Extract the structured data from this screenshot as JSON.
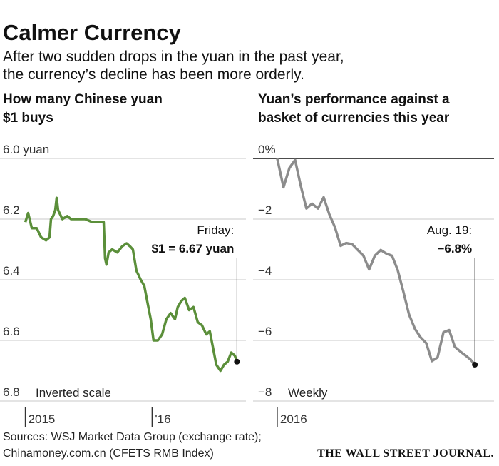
{
  "title": "Calmer Currency",
  "subtitle": [
    "After two sudden drops in the yuan in the past year,",
    "the currency’s decline has been more orderly."
  ],
  "chart_data": [
    {
      "type": "line",
      "title": [
        "How many Chinese yuan",
        "$1 buys"
      ],
      "color": "#5b8f3a",
      "inverted_scale": true,
      "grid": true,
      "x": [
        2015.0,
        2015.022,
        2015.051,
        2015.09,
        2015.124,
        2015.163,
        2015.191,
        2015.202,
        2015.219,
        2015.236,
        2015.247,
        2015.258,
        2015.292,
        2015.331,
        2015.36,
        2015.416,
        2015.472,
        2015.528,
        2015.584,
        2015.618,
        2015.629,
        2015.64,
        2015.657,
        2015.685,
        2015.725,
        2015.764,
        2015.798,
        2015.826,
        2015.848,
        2015.876,
        2015.91,
        2015.938,
        2015.961,
        2015.989,
        2016.011,
        2016.045,
        2016.079,
        2016.112,
        2016.146,
        2016.18,
        2016.202,
        2016.23,
        2016.258,
        2016.292,
        2016.326,
        2016.36,
        2016.393,
        2016.427,
        2016.455,
        2016.483,
        2016.506,
        2016.539,
        2016.567,
        2016.596,
        2016.624,
        2016.652,
        2016.669
      ],
      "values": [
        6.21,
        6.18,
        6.23,
        6.23,
        6.26,
        6.27,
        6.26,
        6.2,
        6.19,
        6.17,
        6.13,
        6.17,
        6.2,
        6.19,
        6.2,
        6.2,
        6.2,
        6.21,
        6.21,
        6.21,
        6.33,
        6.35,
        6.31,
        6.3,
        6.31,
        6.29,
        6.28,
        6.29,
        6.3,
        6.37,
        6.4,
        6.42,
        6.47,
        6.53,
        6.6,
        6.6,
        6.58,
        6.53,
        6.51,
        6.53,
        6.49,
        6.47,
        6.46,
        6.5,
        6.49,
        6.54,
        6.55,
        6.58,
        6.57,
        6.63,
        6.68,
        6.7,
        6.68,
        6.67,
        6.64,
        6.65,
        6.67
      ],
      "xlim": [
        2014.8,
        2016.74
      ],
      "xticks": [
        2015,
        {
          "value": 2016,
          "label": "'16"
        }
      ],
      "ylim": [
        6.0,
        6.8
      ],
      "yticks": [
        {
          "value": 6.0,
          "label": "6.0 yuan"
        },
        6.2,
        6.4,
        6.6,
        6.8
      ],
      "end_label": [
        "Friday:",
        "$1 = 6.67 yuan"
      ],
      "note": "Inverted scale"
    },
    {
      "type": "line",
      "title": [
        "Yuan’s performance against a",
        "basket of currencies this year"
      ],
      "color": "#8c8c8c",
      "inverted_scale": false,
      "grid": true,
      "x": [
        2016.0,
        2016.02,
        2016.039,
        2016.057,
        2016.075,
        2016.093,
        2016.111,
        2016.13,
        2016.148,
        2016.166,
        2016.184,
        2016.202,
        2016.22,
        2016.239,
        2016.257,
        2016.275,
        2016.293,
        2016.311,
        2016.33,
        2016.348,
        2016.366,
        2016.384,
        2016.402,
        2016.42,
        2016.439,
        2016.457,
        2016.475,
        2016.493,
        2016.511,
        2016.53,
        2016.548,
        2016.566,
        2016.584,
        2016.602,
        2016.616,
        2016.63
      ],
      "values": [
        0,
        -0.95,
        -0.31,
        -0.05,
        -0.9,
        -1.65,
        -1.49,
        -1.65,
        -1.28,
        -1.84,
        -2.27,
        -2.88,
        -2.79,
        -2.83,
        -3.02,
        -3.21,
        -3.66,
        -3.21,
        -3.02,
        -3.14,
        -3.21,
        -3.68,
        -4.39,
        -5.14,
        -5.62,
        -5.9,
        -6.09,
        -6.68,
        -6.56,
        -5.73,
        -5.66,
        -6.21,
        -6.37,
        -6.51,
        -6.63,
        -6.8
      ],
      "xlim": [
        2015.923,
        2016.691
      ],
      "xticks": [
        2016
      ],
      "ylim": [
        -8,
        0
      ],
      "yticks": [
        {
          "value": 0,
          "label": "0%"
        },
        {
          "value": -2,
          "label": "−2"
        },
        {
          "value": -4,
          "label": "−4"
        },
        {
          "value": -6,
          "label": "−6"
        },
        {
          "value": -8,
          "label": "−8"
        }
      ],
      "end_label": [
        "Aug. 19:",
        "−6.8%"
      ],
      "note": "Weekly"
    }
  ],
  "source": [
    "Sources: WSJ Market Data Group (exchange rate);",
    "Chinamoney.com.cn (CFETS RMB Index)"
  ],
  "logo": "THE WALL STREET JOURNAL."
}
